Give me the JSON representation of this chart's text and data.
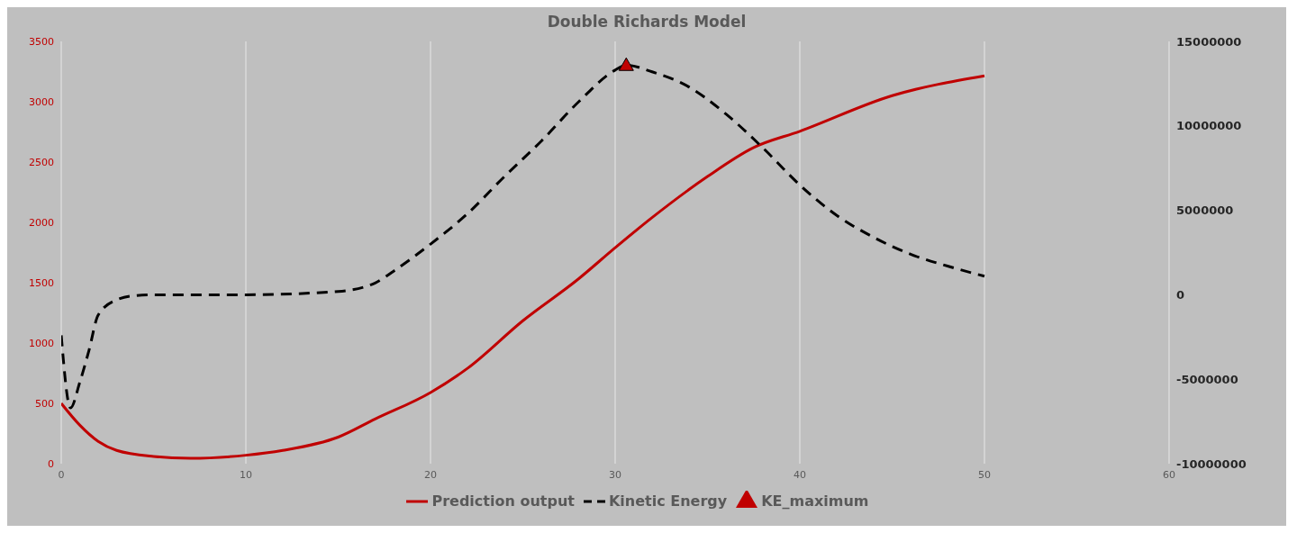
{
  "chart_data": {
    "type": "line",
    "title": "Double Richards  Model",
    "xlim": [
      0,
      60
    ],
    "xticks": [
      0,
      10,
      20,
      30,
      40,
      50,
      60
    ],
    "ylim": [
      0,
      3500
    ],
    "yticks": [
      0,
      500,
      1000,
      1500,
      2000,
      2500,
      3000,
      3500
    ],
    "y2lim": [
      -10000000,
      15000000
    ],
    "y2ticks": [
      -10000000,
      -5000000,
      0,
      5000000,
      10000000,
      15000000
    ],
    "grid": "x",
    "legend": "bottom",
    "series": [
      {
        "name": "Prediction output",
        "type": "line",
        "color": "#c00000",
        "line_style": "solid",
        "marker": "none",
        "x": [
          0,
          1,
          2,
          3,
          5,
          7,
          10,
          12,
          15,
          17,
          20,
          22,
          25,
          28,
          30,
          32,
          35,
          37.5,
          40,
          45,
          50
        ],
        "values": [
          500,
          320,
          185,
          110,
          60,
          45,
          70,
          110,
          220,
          370,
          590,
          790,
          1185,
          1530,
          1790,
          2040,
          2380,
          2620,
          2755,
          3050,
          3215
        ]
      },
      {
        "name": "Kinetic Energy",
        "type": "line",
        "axis": "y2",
        "color": "#000000",
        "line_style": "dashed",
        "marker": "none",
        "x": [
          0,
          0.5,
          1,
          1.5,
          2,
          3,
          4,
          5,
          10,
          15,
          17,
          18,
          20,
          22,
          24,
          26,
          28,
          30,
          30.6,
          32,
          34,
          36,
          38,
          40,
          42,
          44,
          46,
          48,
          50
        ],
        "values": [
          -2400000,
          -6700000,
          -5200000,
          -3300000,
          -1200000,
          -300000,
          -50000,
          0,
          0,
          200000,
          700000,
          1400000,
          3000000,
          4800000,
          7000000,
          9100000,
          11400000,
          13300000,
          13600000,
          13200000,
          12300000,
          10700000,
          8700000,
          6500000,
          4700000,
          3400000,
          2400000,
          1700000,
          1100000
        ]
      },
      {
        "name": "KE_maximum",
        "type": "scatter",
        "axis": "y2",
        "color": "#c00000",
        "marker": "triangle",
        "x": [
          30.6
        ],
        "values": [
          13600000
        ]
      }
    ]
  }
}
